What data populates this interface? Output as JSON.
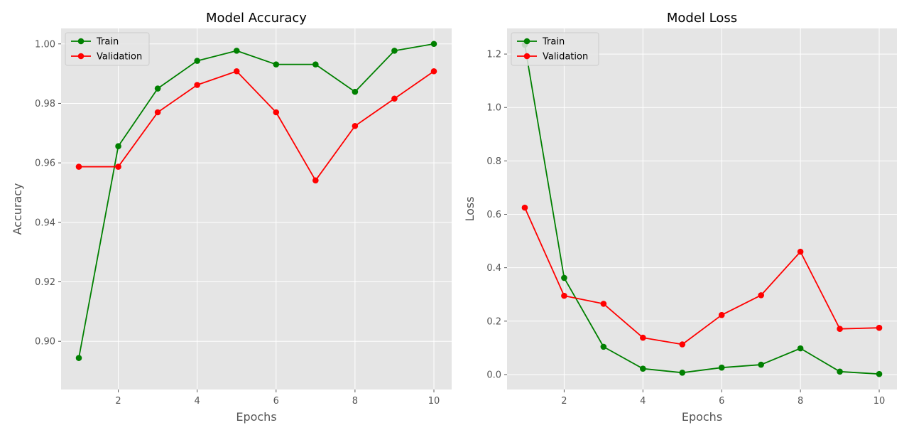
{
  "chart_data": [
    {
      "type": "line",
      "title": "Model Accuracy",
      "xlabel": "Epochs",
      "ylabel": "Accuracy",
      "x": [
        1,
        2,
        3,
        4,
        5,
        6,
        7,
        8,
        9,
        10
      ],
      "xlim": [
        0.55,
        10.45
      ],
      "ylim": [
        0.8838,
        1.0052
      ],
      "xticks": [
        2,
        4,
        6,
        8,
        10
      ],
      "yticks": [
        0.9,
        0.92,
        0.94,
        0.96,
        0.98,
        1.0
      ],
      "ytick_labels": [
        "0.90",
        "0.92",
        "0.94",
        "0.96",
        "0.98",
        "1.00"
      ],
      "grid": true,
      "legend_position": "upper left",
      "series": [
        {
          "name": "Train",
          "color": "#008000",
          "values": [
            0.8944,
            0.9656,
            0.985,
            0.9943,
            0.9977,
            0.9931,
            0.9931,
            0.9839,
            0.9977,
            1.0
          ]
        },
        {
          "name": "Validation",
          "color": "#ff0000",
          "values": [
            0.9587,
            0.9587,
            0.977,
            0.9862,
            0.9908,
            0.977,
            0.9541,
            0.9724,
            0.9816,
            0.9908
          ]
        }
      ]
    },
    {
      "type": "line",
      "title": "Model Loss",
      "xlabel": "Epochs",
      "ylabel": "Loss",
      "x": [
        1,
        2,
        3,
        4,
        5,
        6,
        7,
        8,
        9,
        10
      ],
      "xlim": [
        0.55,
        10.45
      ],
      "ylim": [
        -0.056,
        1.296
      ],
      "xticks": [
        2,
        4,
        6,
        8,
        10
      ],
      "yticks": [
        0.0,
        0.2,
        0.4,
        0.6,
        0.8,
        1.0,
        1.2
      ],
      "ytick_labels": [
        "0.0",
        "0.2",
        "0.4",
        "0.6",
        "0.8",
        "1.0",
        "1.2"
      ],
      "grid": true,
      "legend_position": "upper left",
      "series": [
        {
          "name": "Train",
          "color": "#008000",
          "values": [
            1.235,
            0.362,
            0.104,
            0.022,
            0.007,
            0.026,
            0.037,
            0.098,
            0.011,
            0.002
          ]
        },
        {
          "name": "Validation",
          "color": "#ff0000",
          "values": [
            0.625,
            0.295,
            0.265,
            0.138,
            0.113,
            0.223,
            0.297,
            0.46,
            0.171,
            0.175
          ]
        }
      ]
    }
  ],
  "style": {
    "background": "#ffffff",
    "plot_background": "#e5e5e5",
    "grid_color": "#ffffff"
  }
}
